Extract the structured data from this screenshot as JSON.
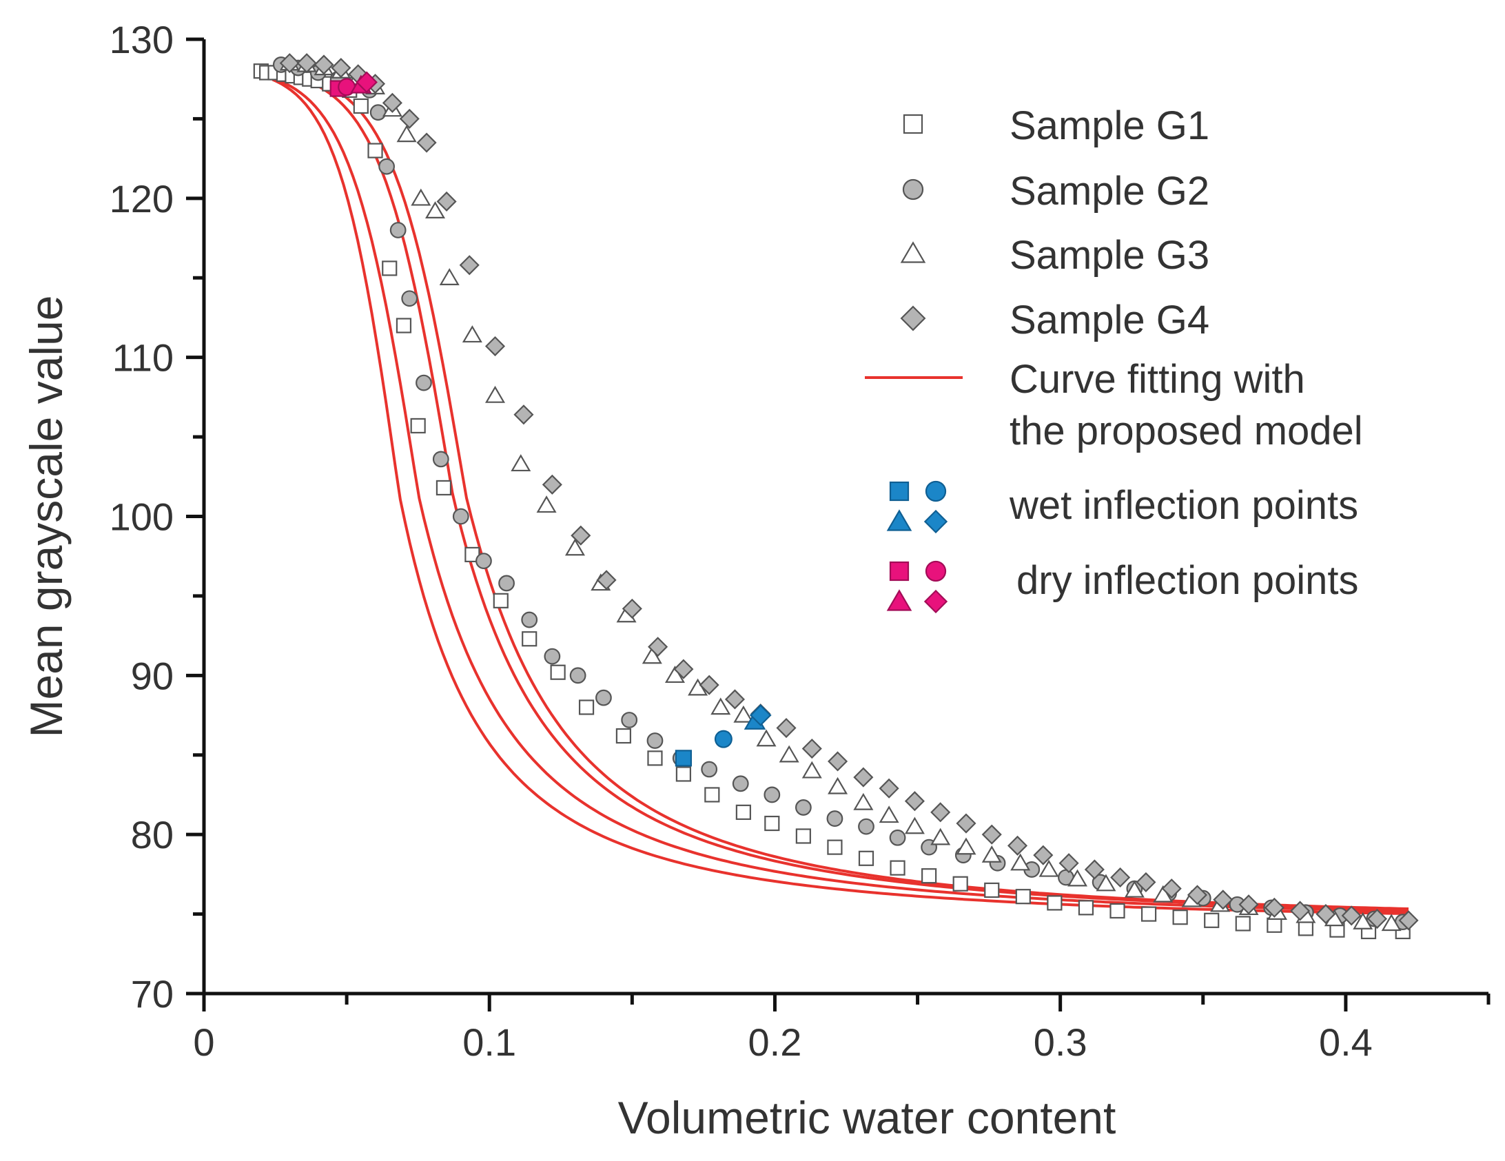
{
  "chart_data": {
    "type": "scatter",
    "title": "",
    "xlabel": "Volumetric water content",
    "ylabel": "Mean grayscale value",
    "xlim": [
      0,
      0.45
    ],
    "ylim": [
      70,
      130
    ],
    "xticks": [
      0,
      0.1,
      0.2,
      0.3,
      0.4
    ],
    "xtick_labels": [
      "0",
      "0.1",
      "0.2",
      "0.3",
      "0.4"
    ],
    "yticks": [
      70,
      80,
      90,
      100,
      110,
      120,
      130
    ],
    "ytick_labels": [
      "70",
      "80",
      "90",
      "100",
      "110",
      "120",
      "130"
    ],
    "grid": false,
    "legend_position": "top-right",
    "legend": {
      "g1": "Sample G1",
      "g2": "Sample G2",
      "g3": "Sample G3",
      "g4": "Sample G4",
      "fit_line1": "Curve fitting with",
      "fit_line2": "the proposed model",
      "wet": "wet inflection points",
      "dry": "dry inflection points"
    },
    "colors": {
      "fit": "#e8322d",
      "wet": "#1b86c8",
      "dry": "#e8127c",
      "marker_fill_gray": "#b4b4b4",
      "marker_stroke": "#555555"
    },
    "fit_params": [
      {
        "name": "G1",
        "c": 0.0685,
        "w": 0.0107
      },
      {
        "name": "G2",
        "c": 0.0752,
        "w": 0.012
      },
      {
        "name": "G3",
        "c": 0.0872,
        "w": 0.0126
      },
      {
        "name": "G4",
        "c": 0.0918,
        "w": 0.0128
      }
    ],
    "series": [
      {
        "name": "Sample G1",
        "marker": "square",
        "x": [
          0.02,
          0.022,
          0.025,
          0.028,
          0.031,
          0.034,
          0.037,
          0.04,
          0.044,
          0.048,
          0.051,
          0.055,
          0.06,
          0.065,
          0.07,
          0.075,
          0.084,
          0.094,
          0.104,
          0.114,
          0.124,
          0.134,
          0.147,
          0.158,
          0.168,
          0.178,
          0.189,
          0.199,
          0.21,
          0.221,
          0.232,
          0.243,
          0.254,
          0.265,
          0.276,
          0.287,
          0.298,
          0.309,
          0.32,
          0.331,
          0.342,
          0.353,
          0.364,
          0.375,
          0.386,
          0.397,
          0.408,
          0.42
        ],
        "y": [
          128.0,
          127.9,
          127.9,
          127.8,
          127.7,
          127.6,
          127.5,
          127.4,
          127.2,
          127.0,
          126.8,
          125.8,
          123.0,
          115.6,
          112.0,
          105.7,
          101.8,
          97.6,
          94.7,
          92.3,
          90.2,
          88.0,
          86.2,
          84.8,
          83.8,
          82.5,
          81.4,
          80.7,
          79.9,
          79.2,
          78.5,
          77.9,
          77.4,
          76.9,
          76.5,
          76.1,
          75.7,
          75.4,
          75.2,
          75.0,
          74.8,
          74.6,
          74.4,
          74.3,
          74.1,
          74.0,
          73.9,
          73.9
        ]
      },
      {
        "name": "Sample G2",
        "marker": "circle",
        "x": [
          0.027,
          0.033,
          0.04,
          0.047,
          0.053,
          0.058,
          0.061,
          0.064,
          0.068,
          0.072,
          0.077,
          0.083,
          0.09,
          0.098,
          0.106,
          0.114,
          0.122,
          0.131,
          0.14,
          0.149,
          0.158,
          0.167,
          0.177,
          0.188,
          0.199,
          0.21,
          0.221,
          0.232,
          0.243,
          0.254,
          0.266,
          0.278,
          0.29,
          0.302,
          0.314,
          0.326,
          0.338,
          0.35,
          0.362,
          0.374,
          0.386,
          0.398,
          0.41,
          0.42
        ],
        "y": [
          128.4,
          128.2,
          127.9,
          127.5,
          127.2,
          126.8,
          125.4,
          122.0,
          118.0,
          113.7,
          108.4,
          103.6,
          100.0,
          97.2,
          95.8,
          93.5,
          91.2,
          90.0,
          88.6,
          87.2,
          85.9,
          84.8,
          84.1,
          83.2,
          82.5,
          81.7,
          81.0,
          80.5,
          79.8,
          79.2,
          78.7,
          78.2,
          77.8,
          77.3,
          77.0,
          76.6,
          76.3,
          76.0,
          75.6,
          75.4,
          75.1,
          74.9,
          74.7,
          74.5
        ]
      },
      {
        "name": "Sample G3",
        "marker": "triangle",
        "x": [
          0.03,
          0.036,
          0.042,
          0.048,
          0.054,
          0.06,
          0.066,
          0.071,
          0.076,
          0.081,
          0.086,
          0.094,
          0.102,
          0.111,
          0.12,
          0.13,
          0.139,
          0.148,
          0.157,
          0.165,
          0.173,
          0.181,
          0.189,
          0.197,
          0.205,
          0.213,
          0.222,
          0.231,
          0.24,
          0.249,
          0.258,
          0.267,
          0.276,
          0.286,
          0.296,
          0.306,
          0.316,
          0.326,
          0.336,
          0.346,
          0.356,
          0.366,
          0.376,
          0.386,
          0.396,
          0.406,
          0.416
        ],
        "y": [
          128.5,
          128.4,
          128.2,
          128.0,
          127.6,
          127.0,
          125.6,
          124.0,
          120.0,
          119.2,
          115.0,
          111.4,
          107.6,
          103.3,
          100.7,
          98.0,
          95.8,
          93.8,
          91.2,
          90.0,
          89.2,
          88.0,
          87.5,
          86.0,
          85.0,
          84.0,
          83.0,
          82.0,
          81.2,
          80.5,
          79.8,
          79.2,
          78.7,
          78.2,
          77.8,
          77.2,
          76.9,
          76.5,
          76.2,
          75.9,
          75.6,
          75.4,
          75.1,
          74.9,
          74.7,
          74.5,
          74.4
        ]
      },
      {
        "name": "Sample G4",
        "marker": "diamond",
        "x": [
          0.03,
          0.036,
          0.042,
          0.048,
          0.054,
          0.06,
          0.066,
          0.072,
          0.078,
          0.085,
          0.093,
          0.102,
          0.112,
          0.122,
          0.132,
          0.141,
          0.15,
          0.159,
          0.168,
          0.177,
          0.186,
          0.195,
          0.204,
          0.213,
          0.222,
          0.231,
          0.24,
          0.249,
          0.258,
          0.267,
          0.276,
          0.285,
          0.294,
          0.303,
          0.312,
          0.321,
          0.33,
          0.339,
          0.348,
          0.357,
          0.366,
          0.375,
          0.384,
          0.393,
          0.402,
          0.411,
          0.422
        ],
        "y": [
          128.5,
          128.5,
          128.4,
          128.2,
          127.8,
          127.2,
          126.0,
          125.0,
          123.5,
          119.8,
          115.8,
          110.7,
          106.4,
          102.0,
          98.8,
          96.0,
          94.2,
          91.8,
          90.4,
          89.4,
          88.5,
          87.6,
          86.7,
          85.4,
          84.6,
          83.6,
          82.9,
          82.1,
          81.4,
          80.7,
          80.0,
          79.3,
          78.7,
          78.2,
          77.8,
          77.3,
          77.0,
          76.6,
          76.2,
          75.9,
          75.6,
          75.4,
          75.2,
          75.0,
          74.9,
          74.7,
          74.6
        ]
      }
    ],
    "wet_inflection_points": [
      {
        "sample": "G1",
        "marker": "square",
        "x": 0.168,
        "y": 84.8
      },
      {
        "sample": "G2",
        "marker": "circle",
        "x": 0.182,
        "y": 86.0
      },
      {
        "sample": "G3",
        "marker": "triangle",
        "x": 0.193,
        "y": 87.1
      },
      {
        "sample": "G4",
        "marker": "diamond",
        "x": 0.195,
        "y": 87.5
      }
    ],
    "dry_inflection_points": [
      {
        "sample": "G1",
        "marker": "square",
        "x": 0.047,
        "y": 126.9
      },
      {
        "sample": "G2",
        "marker": "circle",
        "x": 0.05,
        "y": 127.0
      },
      {
        "sample": "G3",
        "marker": "triangle",
        "x": 0.055,
        "y": 127.1
      },
      {
        "sample": "G4",
        "marker": "diamond",
        "x": 0.057,
        "y": 127.3
      }
    ]
  }
}
